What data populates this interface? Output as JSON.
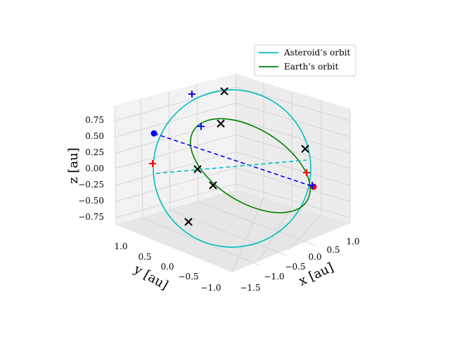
{
  "chart_data": {
    "type": "3d-line",
    "legend": {
      "placement": "top-right",
      "entries": [
        {
          "label": "Asteroid’s orbit",
          "color": "#00bfbf"
        },
        {
          "label": "Earth’s orbit",
          "color": "#008000"
        }
      ]
    },
    "axes": {
      "x": {
        "label": "x [au]",
        "ticks": [
          "−1.5",
          "−1.0",
          "−0.5",
          "0.0",
          "0.5",
          "1.0"
        ]
      },
      "y": {
        "label": "y [au]",
        "ticks": [
          "−1.0",
          "−0.5",
          "0.0",
          "0.5",
          "1.0"
        ]
      },
      "z": {
        "label": "z [au]",
        "ticks": [
          "−0.75",
          "−0.50",
          "−0.25",
          "0.00",
          "0.25",
          "0.50",
          "0.75"
        ]
      }
    },
    "grid": true,
    "series": [
      {
        "name": "Asteroid’s orbit",
        "shape": "ellipse",
        "style": "solid",
        "color": "#00bfbf"
      },
      {
        "name": "Earth’s orbit",
        "shape": "ellipse",
        "style": "solid",
        "color": "#008000"
      }
    ],
    "lines": [
      {
        "style": "dashed",
        "color": "#0000ff"
      },
      {
        "style": "dashed",
        "color": "#00bfbf"
      }
    ],
    "markers": [
      {
        "symbol": "dot",
        "color": "#0000ff"
      },
      {
        "symbol": "dot",
        "color": "#ff0000"
      },
      {
        "symbol": "plus",
        "color": "#0000ff"
      },
      {
        "symbol": "plus",
        "color": "#ff0000"
      },
      {
        "symbol": "x",
        "color": "#000000"
      }
    ]
  }
}
